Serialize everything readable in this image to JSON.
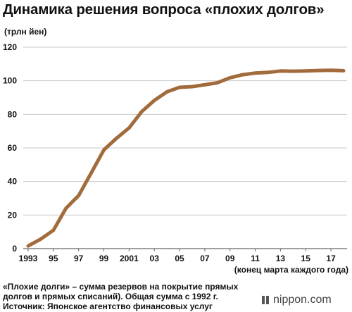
{
  "header": {
    "title": "Динамика решения вопроса «плохих долгов»",
    "unit": "(трлн йен)"
  },
  "footer": {
    "xaxis_note": "(конец марта каждого года)",
    "note_lines": [
      "«Плохие долги» – сумма резервов на покрытие прямых",
      "долгов и прямых списаний). Общая сумма с 1992 г.",
      "Источник: Японское агентство финансовых услуг"
    ],
    "brand": "nippon.com"
  },
  "chart_data": {
    "type": "line",
    "title": "Динамика решения вопроса «плохих долгов»",
    "ylabel": "(трлн йен)",
    "xlabel": "(конец марта каждого года)",
    "ylim": [
      0,
      120
    ],
    "yticks": [
      0,
      20,
      40,
      60,
      80,
      100,
      120
    ],
    "xlim": [
      1993,
      2018
    ],
    "xtick_values": [
      1993,
      1995,
      1997,
      1999,
      2001,
      2003,
      2005,
      2007,
      2009,
      2011,
      2013,
      2015,
      2017
    ],
    "xtick_labels": [
      "1993",
      "95",
      "97",
      "99",
      "2001",
      "03",
      "05",
      "07",
      "09",
      "11",
      "13",
      "15",
      "17"
    ],
    "grid": "horizontal",
    "line_color": "#a26b3c",
    "grid_color": "#c8c8c8",
    "series": [
      {
        "x": [
          1993,
          1994,
          1995,
          1996,
          1997,
          1998,
          1999,
          2000,
          2001,
          2002,
          2003,
          2004,
          2005,
          2006,
          2007,
          2008,
          2009,
          2010,
          2011,
          2012,
          2013,
          2014,
          2015,
          2016,
          2017,
          2018
        ],
        "values": [
          1.6,
          5.7,
          10.9,
          24.1,
          31.6,
          45.1,
          58.8,
          65.7,
          71.9,
          81.6,
          88.3,
          93.4,
          96.1,
          96.5,
          97.6,
          98.8,
          101.8,
          103.6,
          104.6,
          105.0,
          105.8,
          105.7,
          105.8,
          106.1,
          106.3,
          106.0
        ]
      }
    ]
  }
}
